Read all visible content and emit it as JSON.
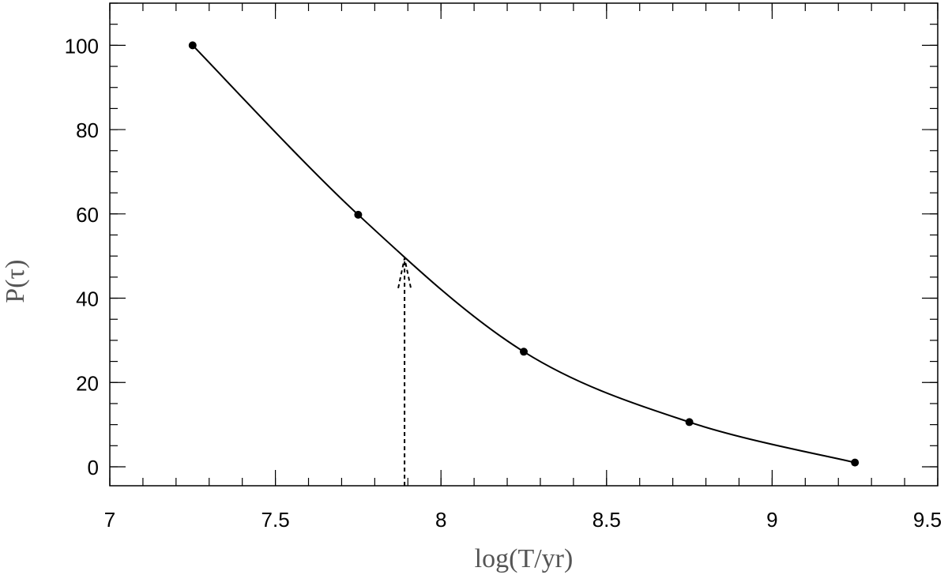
{
  "chart_data": {
    "type": "line",
    "xlabel": "log(T/yr)",
    "ylabel": "P(τ)",
    "xlim": [
      7,
      9.5
    ],
    "ylim": [
      -4.5,
      110
    ],
    "x_ticks": [
      "7",
      "7.5",
      "8",
      "8.5",
      "9",
      "9.5"
    ],
    "y_ticks": [
      "0",
      "20",
      "40",
      "60",
      "80",
      "100"
    ],
    "x_tick_values": [
      7,
      7.5,
      8,
      8.5,
      9,
      9.5
    ],
    "y_tick_values": [
      0,
      20,
      40,
      60,
      80,
      100
    ],
    "x_minor_step": 0.1,
    "y_minor_step": 5,
    "grid": false,
    "legend": "none",
    "series": [
      {
        "kind": "points",
        "x": [
          7.25,
          7.75,
          8.25,
          8.75,
          9.25
        ],
        "y": [
          100,
          59.8,
          27.3,
          10.6,
          1.0
        ]
      },
      {
        "kind": "curve",
        "x": [
          7.25,
          7.75,
          8.25,
          8.75,
          9.25
        ],
        "y": [
          100,
          59.8,
          27.3,
          10.6,
          1.0
        ]
      }
    ],
    "annotations": [
      {
        "type": "dashed-arrow",
        "x": 7.89,
        "y_from": -4.5,
        "y_to": 49.5
      }
    ]
  }
}
